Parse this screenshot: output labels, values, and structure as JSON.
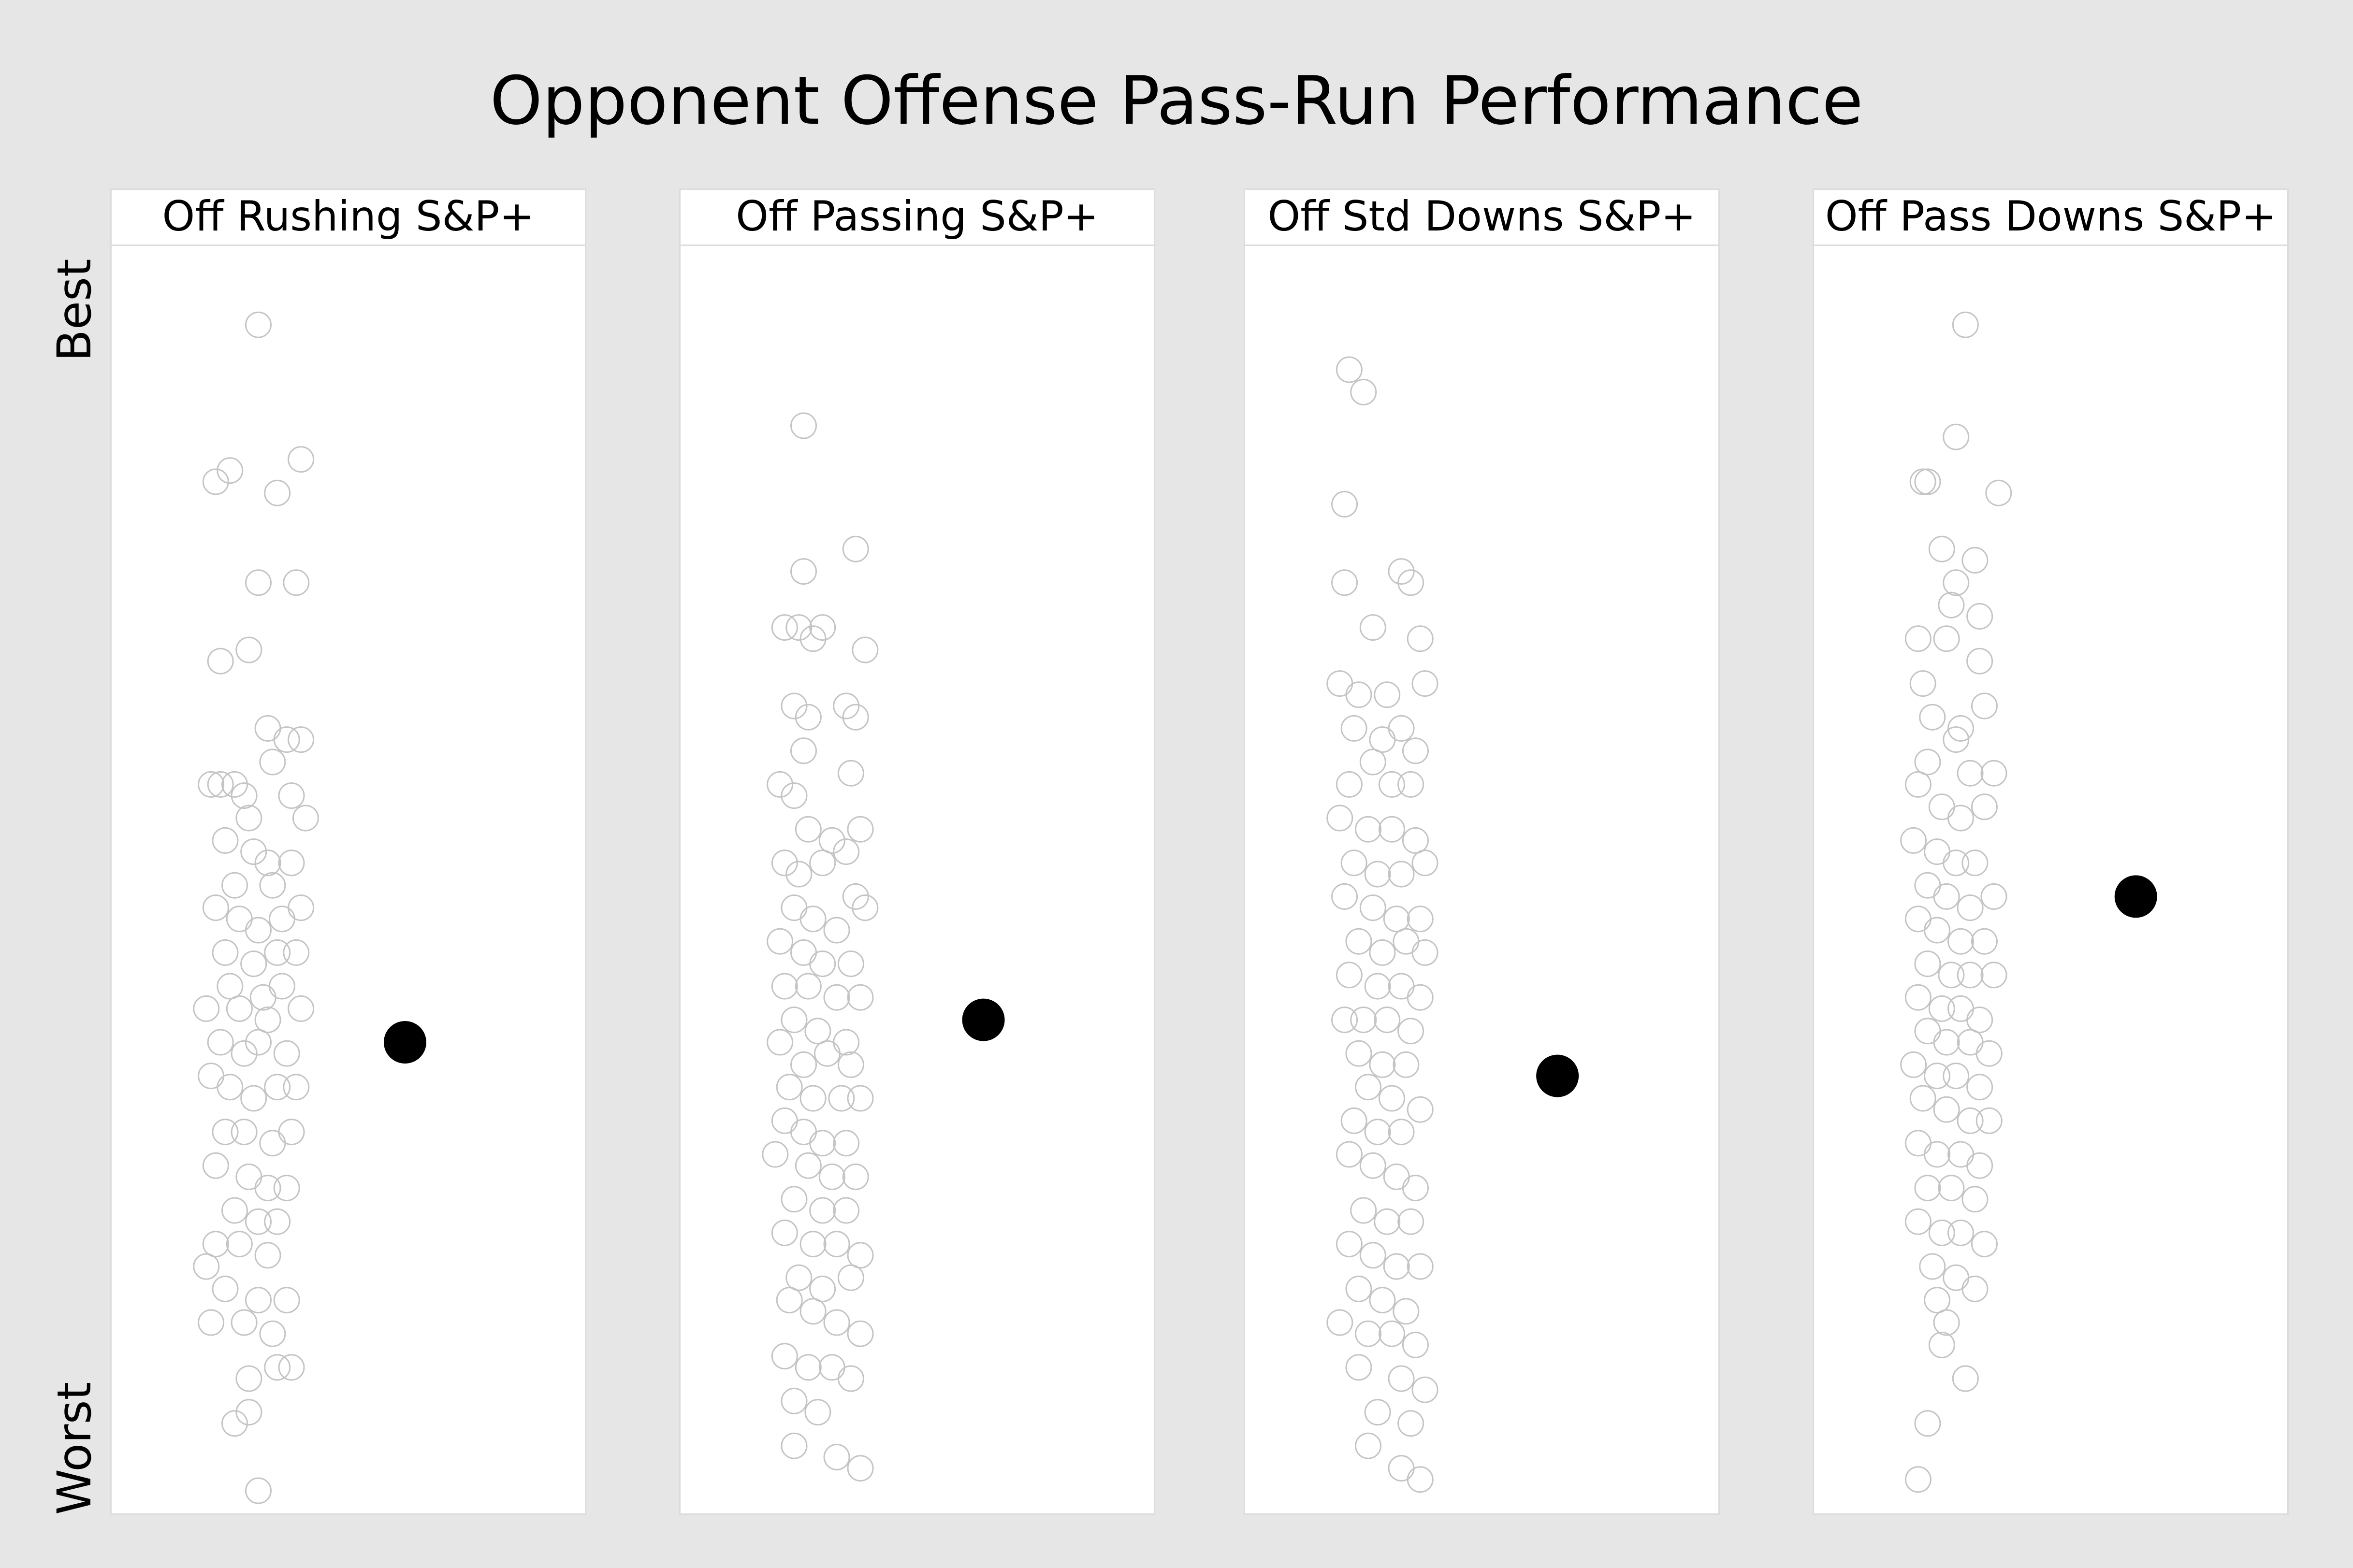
{
  "chart_data": {
    "type": "scatter",
    "title": "Opponent Offense Pass-Run Performance",
    "ylabel_top": "Best",
    "ylabel_bottom": "Worst",
    "ylim": [
      0,
      1
    ],
    "y_scale_note": "1 = Best, 0 = Worst",
    "panels": [
      {
        "name": "Off Rushing S&P+",
        "highlight": {
          "x": 0.62,
          "y": 0.35
        },
        "points": [
          [
            0.31,
            0.99
          ],
          [
            0.22,
            0.85
          ],
          [
            0.25,
            0.86
          ],
          [
            0.35,
            0.84
          ],
          [
            0.4,
            0.87
          ],
          [
            0.31,
            0.76
          ],
          [
            0.39,
            0.76
          ],
          [
            0.23,
            0.69
          ],
          [
            0.29,
            0.7
          ],
          [
            0.33,
            0.63
          ],
          [
            0.37,
            0.62
          ],
          [
            0.4,
            0.62
          ],
          [
            0.21,
            0.58
          ],
          [
            0.23,
            0.58
          ],
          [
            0.26,
            0.58
          ],
          [
            0.28,
            0.57
          ],
          [
            0.34,
            0.6
          ],
          [
            0.38,
            0.57
          ],
          [
            0.41,
            0.55
          ],
          [
            0.29,
            0.55
          ],
          [
            0.24,
            0.53
          ],
          [
            0.3,
            0.52
          ],
          [
            0.33,
            0.51
          ],
          [
            0.38,
            0.51
          ],
          [
            0.26,
            0.49
          ],
          [
            0.34,
            0.49
          ],
          [
            0.22,
            0.47
          ],
          [
            0.27,
            0.46
          ],
          [
            0.31,
            0.45
          ],
          [
            0.36,
            0.46
          ],
          [
            0.4,
            0.47
          ],
          [
            0.24,
            0.43
          ],
          [
            0.3,
            0.42
          ],
          [
            0.35,
            0.43
          ],
          [
            0.39,
            0.43
          ],
          [
            0.25,
            0.4
          ],
          [
            0.32,
            0.39
          ],
          [
            0.36,
            0.4
          ],
          [
            0.2,
            0.38
          ],
          [
            0.27,
            0.38
          ],
          [
            0.33,
            0.37
          ],
          [
            0.4,
            0.38
          ],
          [
            0.23,
            0.35
          ],
          [
            0.28,
            0.34
          ],
          [
            0.31,
            0.35
          ],
          [
            0.37,
            0.34
          ],
          [
            0.21,
            0.32
          ],
          [
            0.25,
            0.31
          ],
          [
            0.3,
            0.3
          ],
          [
            0.35,
            0.31
          ],
          [
            0.39,
            0.31
          ],
          [
            0.24,
            0.27
          ],
          [
            0.28,
            0.27
          ],
          [
            0.34,
            0.26
          ],
          [
            0.38,
            0.27
          ],
          [
            0.22,
            0.24
          ],
          [
            0.29,
            0.23
          ],
          [
            0.33,
            0.22
          ],
          [
            0.37,
            0.22
          ],
          [
            0.26,
            0.2
          ],
          [
            0.31,
            0.19
          ],
          [
            0.35,
            0.19
          ],
          [
            0.22,
            0.17
          ],
          [
            0.27,
            0.17
          ],
          [
            0.33,
            0.16
          ],
          [
            0.2,
            0.15
          ],
          [
            0.24,
            0.13
          ],
          [
            0.31,
            0.12
          ],
          [
            0.37,
            0.12
          ],
          [
            0.21,
            0.1
          ],
          [
            0.28,
            0.1
          ],
          [
            0.34,
            0.09
          ],
          [
            0.38,
            0.06
          ],
          [
            0.29,
            0.05
          ],
          [
            0.35,
            0.06
          ],
          [
            0.29,
            0.02
          ],
          [
            0.26,
            0.01
          ],
          [
            0.31,
            -0.05
          ]
        ]
      },
      {
        "name": "Off Passing S&P+",
        "highlight": {
          "x": 0.64,
          "y": 0.37
        },
        "points": [
          [
            0.26,
            0.9
          ],
          [
            0.26,
            0.77
          ],
          [
            0.37,
            0.79
          ],
          [
            0.22,
            0.72
          ],
          [
            0.25,
            0.72
          ],
          [
            0.28,
            0.71
          ],
          [
            0.3,
            0.72
          ],
          [
            0.39,
            0.7
          ],
          [
            0.24,
            0.65
          ],
          [
            0.27,
            0.64
          ],
          [
            0.35,
            0.65
          ],
          [
            0.37,
            0.64
          ],
          [
            0.26,
            0.61
          ],
          [
            0.36,
            0.59
          ],
          [
            0.21,
            0.58
          ],
          [
            0.24,
            0.57
          ],
          [
            0.38,
            0.54
          ],
          [
            0.27,
            0.54
          ],
          [
            0.32,
            0.53
          ],
          [
            0.35,
            0.52
          ],
          [
            0.22,
            0.51
          ],
          [
            0.25,
            0.5
          ],
          [
            0.3,
            0.51
          ],
          [
            0.37,
            0.48
          ],
          [
            0.24,
            0.47
          ],
          [
            0.28,
            0.46
          ],
          [
            0.33,
            0.45
          ],
          [
            0.39,
            0.47
          ],
          [
            0.21,
            0.44
          ],
          [
            0.26,
            0.43
          ],
          [
            0.3,
            0.42
          ],
          [
            0.36,
            0.42
          ],
          [
            0.22,
            0.4
          ],
          [
            0.27,
            0.4
          ],
          [
            0.33,
            0.39
          ],
          [
            0.38,
            0.39
          ],
          [
            0.24,
            0.37
          ],
          [
            0.29,
            0.36
          ],
          [
            0.35,
            0.35
          ],
          [
            0.21,
            0.35
          ],
          [
            0.26,
            0.33
          ],
          [
            0.31,
            0.34
          ],
          [
            0.36,
            0.33
          ],
          [
            0.23,
            0.31
          ],
          [
            0.28,
            0.3
          ],
          [
            0.34,
            0.3
          ],
          [
            0.38,
            0.3
          ],
          [
            0.22,
            0.28
          ],
          [
            0.26,
            0.27
          ],
          [
            0.3,
            0.26
          ],
          [
            0.35,
            0.26
          ],
          [
            0.2,
            0.25
          ],
          [
            0.27,
            0.24
          ],
          [
            0.32,
            0.23
          ],
          [
            0.37,
            0.23
          ],
          [
            0.24,
            0.21
          ],
          [
            0.3,
            0.2
          ],
          [
            0.35,
            0.2
          ],
          [
            0.22,
            0.18
          ],
          [
            0.28,
            0.17
          ],
          [
            0.33,
            0.17
          ],
          [
            0.38,
            0.16
          ],
          [
            0.25,
            0.14
          ],
          [
            0.3,
            0.13
          ],
          [
            0.36,
            0.14
          ],
          [
            0.23,
            0.12
          ],
          [
            0.28,
            0.11
          ],
          [
            0.33,
            0.1
          ],
          [
            0.38,
            0.09
          ],
          [
            0.22,
            0.07
          ],
          [
            0.27,
            0.06
          ],
          [
            0.32,
            0.06
          ],
          [
            0.36,
            0.05
          ],
          [
            0.24,
            0.03
          ],
          [
            0.29,
            0.02
          ],
          [
            0.24,
            -0.01
          ],
          [
            0.33,
            -0.02
          ],
          [
            0.38,
            -0.03
          ]
        ]
      },
      {
        "name": "Off Std Downs S&P+",
        "highlight": {
          "x": 0.66,
          "y": 0.32
        },
        "points": [
          [
            0.22,
            0.95
          ],
          [
            0.25,
            0.93
          ],
          [
            0.21,
            0.83
          ],
          [
            0.21,
            0.76
          ],
          [
            0.33,
            0.77
          ],
          [
            0.35,
            0.76
          ],
          [
            0.27,
            0.72
          ],
          [
            0.37,
            0.71
          ],
          [
            0.2,
            0.67
          ],
          [
            0.24,
            0.66
          ],
          [
            0.3,
            0.66
          ],
          [
            0.38,
            0.67
          ],
          [
            0.23,
            0.63
          ],
          [
            0.29,
            0.62
          ],
          [
            0.33,
            0.63
          ],
          [
            0.36,
            0.61
          ],
          [
            0.27,
            0.6
          ],
          [
            0.31,
            0.58
          ],
          [
            0.35,
            0.58
          ],
          [
            0.22,
            0.58
          ],
          [
            0.2,
            0.55
          ],
          [
            0.26,
            0.54
          ],
          [
            0.31,
            0.54
          ],
          [
            0.36,
            0.53
          ],
          [
            0.23,
            0.51
          ],
          [
            0.28,
            0.5
          ],
          [
            0.33,
            0.5
          ],
          [
            0.38,
            0.51
          ],
          [
            0.21,
            0.48
          ],
          [
            0.27,
            0.47
          ],
          [
            0.32,
            0.46
          ],
          [
            0.37,
            0.46
          ],
          [
            0.24,
            0.44
          ],
          [
            0.29,
            0.43
          ],
          [
            0.34,
            0.44
          ],
          [
            0.38,
            0.43
          ],
          [
            0.22,
            0.41
          ],
          [
            0.28,
            0.4
          ],
          [
            0.33,
            0.4
          ],
          [
            0.37,
            0.39
          ],
          [
            0.25,
            0.37
          ],
          [
            0.3,
            0.37
          ],
          [
            0.35,
            0.36
          ],
          [
            0.21,
            0.37
          ],
          [
            0.24,
            0.34
          ],
          [
            0.29,
            0.33
          ],
          [
            0.34,
            0.33
          ],
          [
            0.26,
            0.31
          ],
          [
            0.31,
            0.3
          ],
          [
            0.37,
            0.29
          ],
          [
            0.23,
            0.28
          ],
          [
            0.28,
            0.27
          ],
          [
            0.33,
            0.27
          ],
          [
            0.22,
            0.25
          ],
          [
            0.27,
            0.24
          ],
          [
            0.32,
            0.23
          ],
          [
            0.36,
            0.22
          ],
          [
            0.25,
            0.2
          ],
          [
            0.3,
            0.19
          ],
          [
            0.35,
            0.19
          ],
          [
            0.22,
            0.17
          ],
          [
            0.27,
            0.16
          ],
          [
            0.32,
            0.15
          ],
          [
            0.37,
            0.15
          ],
          [
            0.24,
            0.13
          ],
          [
            0.29,
            0.12
          ],
          [
            0.34,
            0.11
          ],
          [
            0.2,
            0.1
          ],
          [
            0.26,
            0.09
          ],
          [
            0.31,
            0.09
          ],
          [
            0.36,
            0.08
          ],
          [
            0.24,
            0.06
          ],
          [
            0.33,
            0.05
          ],
          [
            0.38,
            0.04
          ],
          [
            0.28,
            0.02
          ],
          [
            0.35,
            0.01
          ],
          [
            0.26,
            -0.01
          ],
          [
            0.33,
            -0.03
          ],
          [
            0.37,
            -0.04
          ]
        ]
      },
      {
        "name": "Off Pass Downs S&P+",
        "highlight": {
          "x": 0.68,
          "y": 0.48
        },
        "points": [
          [
            0.32,
            0.99
          ],
          [
            0.3,
            0.89
          ],
          [
            0.23,
            0.85
          ],
          [
            0.24,
            0.85
          ],
          [
            0.39,
            0.84
          ],
          [
            0.27,
            0.79
          ],
          [
            0.34,
            0.78
          ],
          [
            0.3,
            0.76
          ],
          [
            0.29,
            0.74
          ],
          [
            0.35,
            0.73
          ],
          [
            0.22,
            0.71
          ],
          [
            0.28,
            0.71
          ],
          [
            0.35,
            0.69
          ],
          [
            0.23,
            0.67
          ],
          [
            0.36,
            0.65
          ],
          [
            0.25,
            0.64
          ],
          [
            0.31,
            0.63
          ],
          [
            0.3,
            0.62
          ],
          [
            0.24,
            0.6
          ],
          [
            0.33,
            0.59
          ],
          [
            0.38,
            0.59
          ],
          [
            0.22,
            0.58
          ],
          [
            0.27,
            0.56
          ],
          [
            0.31,
            0.55
          ],
          [
            0.36,
            0.56
          ],
          [
            0.21,
            0.53
          ],
          [
            0.26,
            0.52
          ],
          [
            0.3,
            0.51
          ],
          [
            0.34,
            0.51
          ],
          [
            0.24,
            0.49
          ],
          [
            0.28,
            0.48
          ],
          [
            0.33,
            0.47
          ],
          [
            0.38,
            0.48
          ],
          [
            0.22,
            0.46
          ],
          [
            0.26,
            0.45
          ],
          [
            0.31,
            0.44
          ],
          [
            0.36,
            0.44
          ],
          [
            0.24,
            0.42
          ],
          [
            0.29,
            0.41
          ],
          [
            0.33,
            0.41
          ],
          [
            0.38,
            0.41
          ],
          [
            0.22,
            0.39
          ],
          [
            0.27,
            0.38
          ],
          [
            0.31,
            0.38
          ],
          [
            0.35,
            0.37
          ],
          [
            0.24,
            0.36
          ],
          [
            0.28,
            0.35
          ],
          [
            0.33,
            0.35
          ],
          [
            0.37,
            0.34
          ],
          [
            0.21,
            0.33
          ],
          [
            0.26,
            0.32
          ],
          [
            0.3,
            0.32
          ],
          [
            0.35,
            0.31
          ],
          [
            0.23,
            0.3
          ],
          [
            0.28,
            0.29
          ],
          [
            0.33,
            0.28
          ],
          [
            0.37,
            0.28
          ],
          [
            0.22,
            0.26
          ],
          [
            0.26,
            0.25
          ],
          [
            0.31,
            0.25
          ],
          [
            0.35,
            0.24
          ],
          [
            0.24,
            0.22
          ],
          [
            0.29,
            0.22
          ],
          [
            0.34,
            0.21
          ],
          [
            0.22,
            0.19
          ],
          [
            0.27,
            0.18
          ],
          [
            0.31,
            0.18
          ],
          [
            0.36,
            0.17
          ],
          [
            0.25,
            0.15
          ],
          [
            0.3,
            0.14
          ],
          [
            0.34,
            0.13
          ],
          [
            0.26,
            0.12
          ],
          [
            0.28,
            0.1
          ],
          [
            0.27,
            0.08
          ],
          [
            0.32,
            0.05
          ],
          [
            0.24,
            0.01
          ],
          [
            0.22,
            -0.04
          ]
        ]
      }
    ]
  }
}
